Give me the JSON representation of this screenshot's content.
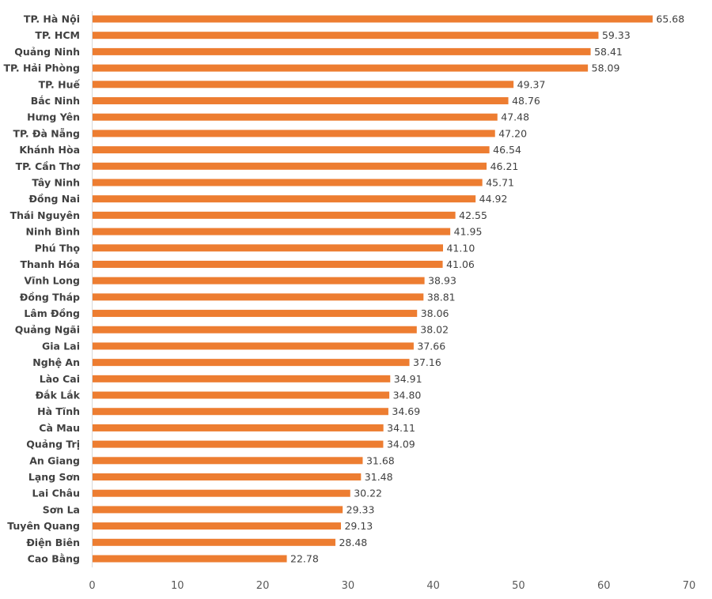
{
  "chart_data": {
    "type": "bar",
    "orientation": "horizontal",
    "title": "",
    "xlabel": "",
    "ylabel": "",
    "xlim": [
      0,
      70
    ],
    "xticks": [
      0,
      10,
      20,
      30,
      40,
      50,
      60,
      70
    ],
    "grid": false,
    "legend": "none",
    "bar_color": "#ED7D31",
    "data_labels": true,
    "categories": [
      "TP. Hà Nội",
      "TP. HCM",
      "Quảng Ninh",
      "TP. Hải Phòng",
      "TP. Huế",
      "Bắc Ninh",
      "Hưng Yên",
      "TP. Đà Nẵng",
      "Khánh Hòa",
      "TP. Cần Thơ",
      "Tây Ninh",
      "Đồng Nai",
      "Thái Nguyên",
      "Ninh Bình",
      "Phú Thọ",
      "Thanh Hóa",
      "Vĩnh Long",
      "Đồng Tháp",
      "Lâm Đồng",
      "Quảng Ngãi",
      "Gia Lai",
      "Nghệ An",
      "Lào Cai",
      "Đắk Lắk",
      "Hà Tĩnh",
      "Cà Mau",
      "Quảng Trị",
      "An Giang",
      "Lạng Sơn",
      "Lai Châu",
      "Sơn La",
      "Tuyên Quang",
      "Điện Biên",
      "Cao Bằng"
    ],
    "values": [
      65.68,
      59.33,
      58.41,
      58.09,
      49.37,
      48.76,
      47.48,
      47.2,
      46.54,
      46.21,
      45.71,
      44.92,
      42.55,
      41.95,
      41.1,
      41.06,
      38.93,
      38.81,
      38.06,
      38.02,
      37.66,
      37.16,
      34.91,
      34.8,
      34.69,
      34.11,
      34.09,
      31.68,
      31.48,
      30.22,
      29.33,
      29.13,
      28.48,
      22.78
    ]
  }
}
